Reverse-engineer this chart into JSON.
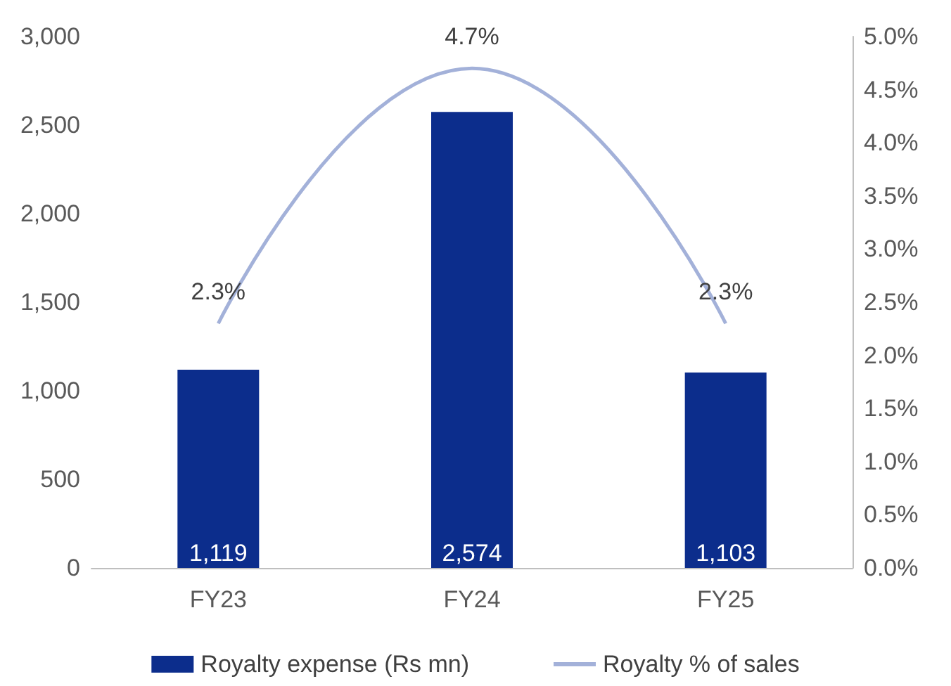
{
  "chart_data": {
    "type": "bar",
    "categories": [
      "FY23",
      "FY24",
      "FY25"
    ],
    "series": [
      {
        "name": "Royalty expense (Rs mn)",
        "color": "#0c2d8c",
        "values": [
          1119,
          2574,
          1103
        ],
        "value_labels": [
          "1,119",
          "2,574",
          "1,103"
        ]
      },
      {
        "name": "Royalty % of sales",
        "type": "line",
        "axis": "y2",
        "color": "#a3b1d9",
        "values": [
          2.3,
          4.7,
          2.3
        ],
        "value_labels": [
          "2.3%",
          "4.7%",
          "2.3%"
        ]
      }
    ],
    "ylim": [
      0,
      3000
    ],
    "yticks": [
      0,
      {
        "value": 500,
        "label": "500"
      },
      {
        "value": 1000,
        "label": "1,000"
      },
      {
        "value": 1500,
        "label": "1,500"
      },
      {
        "value": 2000,
        "label": "2,000"
      },
      {
        "value": 2500,
        "label": "2,500"
      },
      {
        "value": 3000,
        "label": "3,000"
      }
    ],
    "y2lim": [
      0,
      5
    ],
    "y2ticks": [
      {
        "value": 0,
        "label": "0.0%"
      },
      {
        "value": 0.5,
        "label": "0.5%"
      },
      {
        "value": 1,
        "label": "1.0%"
      },
      {
        "value": 1.5,
        "label": "1.5%"
      },
      {
        "value": 2,
        "label": "2.0%"
      },
      {
        "value": 2.5,
        "label": "2.5%"
      },
      {
        "value": 3,
        "label": "3.0%"
      },
      {
        "value": 3.5,
        "label": "3.5%"
      },
      {
        "value": 4,
        "label": "4.0%"
      },
      {
        "value": 4.5,
        "label": "4.5%"
      },
      {
        "value": 5,
        "label": "5.0%"
      }
    ],
    "grid": false,
    "legend": "bottom",
    "marker": "none",
    "line_style": "solid"
  }
}
